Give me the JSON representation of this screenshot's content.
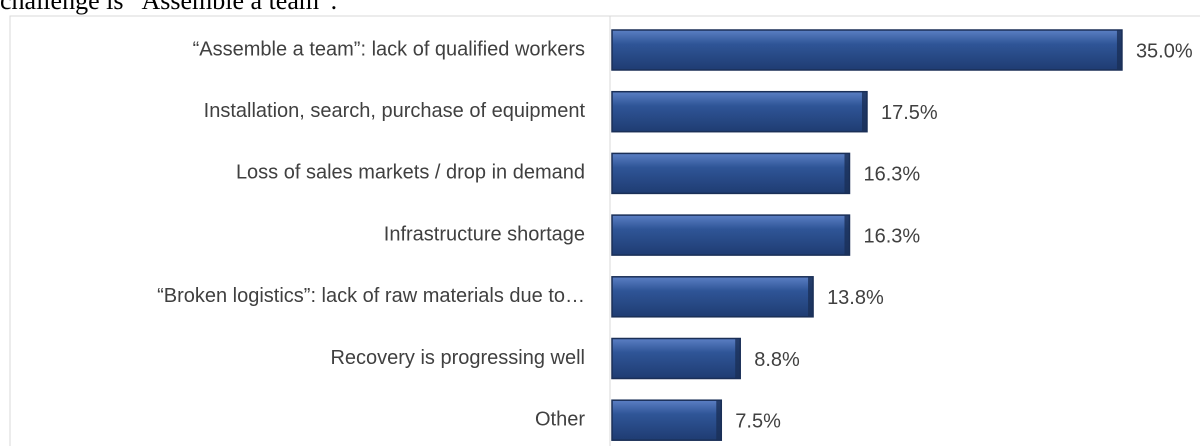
{
  "chart_data": {
    "type": "bar",
    "orientation": "horizontal",
    "title": "challenge is “Assemble a team”.",
    "categories": [
      "“Assemble a team”: lack of qualified workers",
      "Installation, search, purchase of equipment",
      "Loss of sales markets / drop in demand",
      "Infrastructure shortage",
      "“Broken logistics”: lack of raw materials due to…",
      "Recovery is progressing well",
      "Other"
    ],
    "values": [
      35.0,
      17.5,
      16.3,
      16.3,
      13.8,
      8.8,
      7.5
    ],
    "value_labels": [
      "35.0%",
      "17.5%",
      "16.3%",
      "16.3%",
      "13.8%",
      "8.8%",
      "7.5%"
    ],
    "color": "#2f5597"
  }
}
